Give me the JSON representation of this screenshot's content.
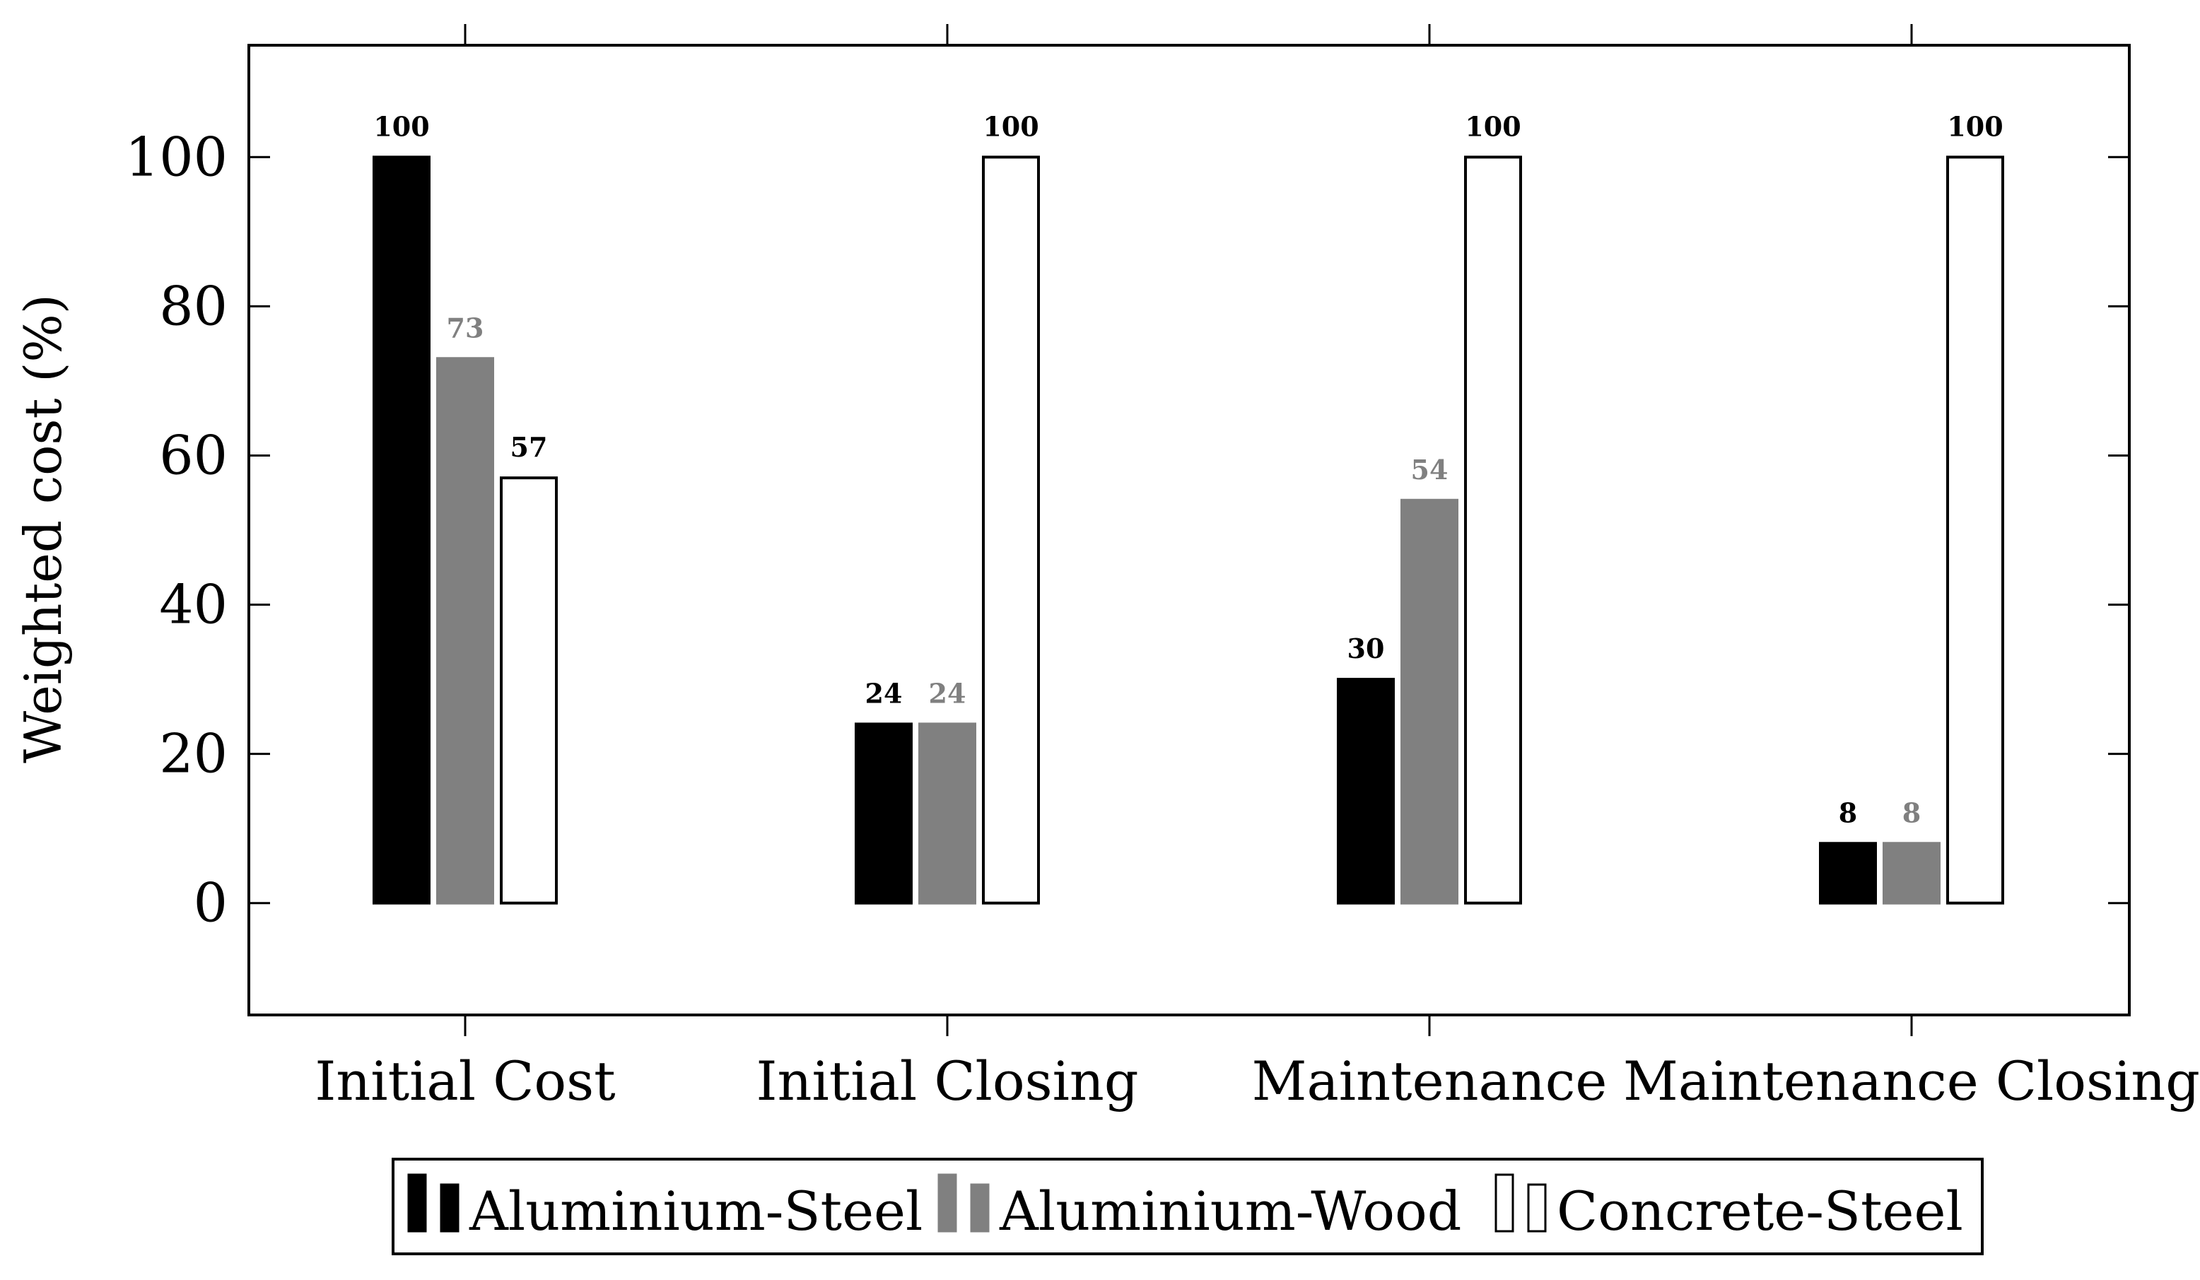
{
  "chart_data": {
    "type": "bar",
    "title": "",
    "xlabel": "",
    "ylabel": "Weighted cost (%)",
    "ylim": [
      -15,
      115
    ],
    "yticks": [
      0,
      20,
      40,
      60,
      80,
      100
    ],
    "grid": false,
    "legend_position": "bottom",
    "categories": [
      "Initial Cost",
      "Initial Closing",
      "Maintenance",
      "Maintenance Closing"
    ],
    "series": [
      {
        "name": "Aluminium-Steel",
        "values": [
          100,
          24,
          30,
          8
        ],
        "fill": "#000000",
        "stroke": "#000000",
        "label_color": "#000000"
      },
      {
        "name": "Aluminium-Wood",
        "values": [
          73,
          24,
          54,
          8
        ],
        "fill": "#808080",
        "stroke": "#808080",
        "label_color": "#808080"
      },
      {
        "name": "Concrete-Steel",
        "values": [
          57,
          100,
          100,
          100
        ],
        "fill": "#ffffff",
        "stroke": "#000000",
        "label_color": "#000000"
      }
    ]
  }
}
